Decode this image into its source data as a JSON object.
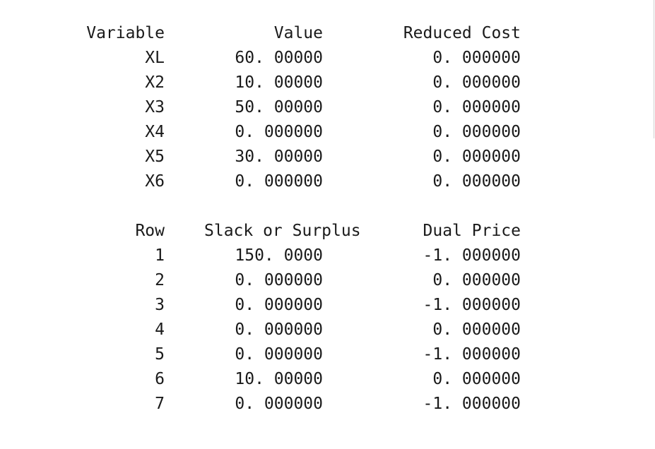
{
  "variables_section": {
    "headers": {
      "variable": "Variable",
      "value": "Value",
      "reduced_cost": "Reduced Cost"
    },
    "rows": [
      {
        "variable": "XL",
        "value": "60. 00000",
        "reduced_cost": "0. 000000"
      },
      {
        "variable": "X2",
        "value": "10. 00000",
        "reduced_cost": "0. 000000"
      },
      {
        "variable": "X3",
        "value": "50. 00000",
        "reduced_cost": "0. 000000"
      },
      {
        "variable": "X4",
        "value": "0. 000000",
        "reduced_cost": "0. 000000"
      },
      {
        "variable": "X5",
        "value": "30. 00000",
        "reduced_cost": "0. 000000"
      },
      {
        "variable": "X6",
        "value": "0. 000000",
        "reduced_cost": "0. 000000"
      }
    ]
  },
  "rows_section": {
    "headers": {
      "row": "Row",
      "slack_or_surplus": "Slack or Surplus",
      "dual_price": "Dual Price"
    },
    "rows": [
      {
        "row": "1",
        "slack_or_surplus": "150. 0000",
        "dual_price": "-1. 000000"
      },
      {
        "row": "2",
        "slack_or_surplus": "0. 000000",
        "dual_price": "0. 000000"
      },
      {
        "row": "3",
        "slack_or_surplus": "0. 000000",
        "dual_price": "-1. 000000"
      },
      {
        "row": "4",
        "slack_or_surplus": "0. 000000",
        "dual_price": "0. 000000"
      },
      {
        "row": "5",
        "slack_or_surplus": "0. 000000",
        "dual_price": "-1. 000000"
      },
      {
        "row": "6",
        "slack_or_surplus": "10. 00000",
        "dual_price": "0. 000000"
      },
      {
        "row": "7",
        "slack_or_surplus": "0. 000000",
        "dual_price": "-1. 000000"
      }
    ]
  }
}
